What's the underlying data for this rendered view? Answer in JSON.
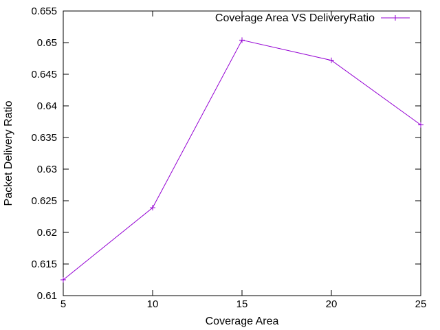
{
  "chart_data": {
    "type": "line",
    "title": "",
    "xlabel": "Coverage Area",
    "ylabel": "Packet Delivery Ratio",
    "xlim": [
      5,
      25
    ],
    "ylim": [
      0.61,
      0.655
    ],
    "x_ticks": [
      "5",
      "10",
      "15",
      "20",
      "25"
    ],
    "y_ticks": [
      "0.61",
      "0.615",
      "0.62",
      "0.625",
      "0.63",
      "0.635",
      "0.64",
      "0.645",
      "0.65",
      "0.655"
    ],
    "grid": false,
    "legend_position": "top-right",
    "series": [
      {
        "name": "Coverage Area VS DeliveryRatio",
        "color": "#9400d3",
        "marker": "plus",
        "x": [
          5,
          10,
          15,
          20,
          25
        ],
        "y": [
          0.6125,
          0.6239,
          0.6504,
          0.6472,
          0.637
        ]
      }
    ]
  }
}
